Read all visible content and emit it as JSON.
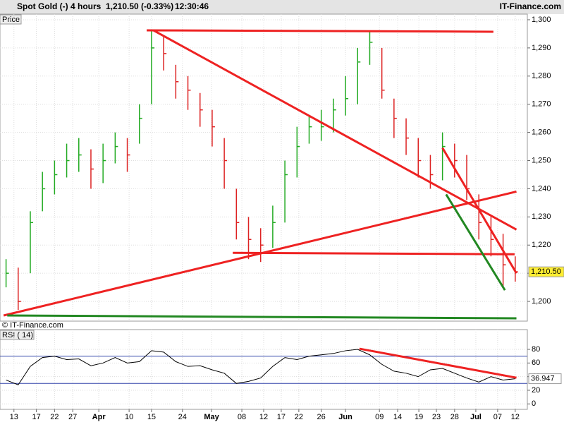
{
  "header": {
    "instrument": "Spot Gold (-)",
    "interval": "4 hours",
    "price": "1,210.50 (-0.33%)",
    "time": "12:30:46",
    "brand": "IT-Finance.com",
    "copyright": "© IT-Finance.com"
  },
  "chart_data": [
    {
      "type": "ohlc",
      "title": "Price",
      "x": [
        1,
        3,
        5,
        7,
        9,
        11,
        13,
        15,
        17,
        19,
        21,
        23,
        25,
        27,
        29,
        31,
        33,
        35,
        37,
        39,
        41,
        43,
        45,
        47,
        49,
        51,
        53,
        55,
        57,
        59,
        61,
        63,
        65,
        67,
        69,
        71,
        73,
        75,
        77,
        79,
        81,
        83,
        85
      ],
      "series": [
        {
          "name": "Spot Gold",
          "up_color": "#22aa22",
          "down_color": "#dd2222",
          "high": [
            1215,
            1212,
            1232,
            1246,
            1250,
            1256,
            1258,
            1254,
            1256,
            1260,
            1258,
            1270,
            1296,
            1294,
            1284,
            1280,
            1274,
            1268,
            1258,
            1240,
            1230,
            1226,
            1234,
            1250,
            1262,
            1266,
            1268,
            1272,
            1280,
            1290,
            1296,
            1290,
            1272,
            1265,
            1258,
            1252,
            1260,
            1256,
            1252,
            1238,
            1230,
            1224,
            1216
          ],
          "low": [
            1205,
            1197,
            1210,
            1232,
            1238,
            1244,
            1246,
            1240,
            1242,
            1249,
            1246,
            1256,
            1270,
            1282,
            1272,
            1268,
            1262,
            1255,
            1240,
            1222,
            1215,
            1214,
            1219,
            1228,
            1244,
            1256,
            1257,
            1260,
            1266,
            1270,
            1284,
            1272,
            1258,
            1252,
            1244,
            1240,
            1243,
            1244,
            1236,
            1222,
            1216,
            1205,
            1207
          ],
          "values": [
            1210,
            1200,
            1228,
            1240,
            1245,
            1250,
            1252,
            1247,
            1250,
            1255,
            1252,
            1265,
            1290,
            1288,
            1278,
            1275,
            1268,
            1262,
            1250,
            1228,
            1222,
            1220,
            1228,
            1245,
            1255,
            1262,
            1262,
            1268,
            1272,
            1285,
            1292,
            1275,
            1265,
            1258,
            1250,
            1245,
            1255,
            1250,
            1240,
            1228,
            1222,
            1213,
            1210.5
          ],
          "last_label": "1,210.50"
        }
      ],
      "trendlines": [
        {
          "color": "#ee2222",
          "x": [
            24.2,
            81.4
          ],
          "y": [
            1296.25,
            1295.75
          ]
        },
        {
          "color": "#ee2222",
          "x": [
            25.3,
            85.2
          ],
          "y": [
            1296.25,
            1225.5
          ]
        },
        {
          "color": "#ee2222",
          "x": [
            0.6,
            85.2
          ],
          "y": [
            1195,
            1239
          ]
        },
        {
          "color": "#ee2222",
          "x": [
            38.4,
            84.9
          ],
          "y": [
            1217.25,
            1216.75
          ]
        },
        {
          "color": "#ee2222",
          "x": [
            73,
            85.2
          ],
          "y": [
            1254.5,
            1210
          ]
        },
        {
          "color": "#228822",
          "x": [
            73.6,
            83.3
          ],
          "y": [
            1238,
            1204
          ]
        },
        {
          "color": "#228822",
          "x": [
            1.2,
            85.2
          ],
          "y": [
            1195,
            1194
          ]
        }
      ],
      "xlim": [
        0,
        87
      ],
      "ylim": [
        1193,
        1302
      ],
      "yticks": [
        {
          "value": 1200,
          "label": "1,200"
        },
        {
          "value": 1210,
          "label": "1,210"
        },
        {
          "value": 1220,
          "label": "1,220"
        },
        {
          "value": 1230,
          "label": "1,230"
        },
        {
          "value": 1240,
          "label": "1,240"
        },
        {
          "value": 1250,
          "label": "1,250"
        },
        {
          "value": 1260,
          "label": "1,260"
        },
        {
          "value": 1270,
          "label": "1,270"
        },
        {
          "value": 1280,
          "label": "1,280"
        },
        {
          "value": 1290,
          "label": "1,290"
        },
        {
          "value": 1300,
          "label": "1,300"
        }
      ],
      "grid": true
    },
    {
      "type": "line",
      "title": "RSI ( 14)",
      "x": [
        1,
        3,
        5,
        7,
        9,
        11,
        13,
        15,
        17,
        19,
        21,
        23,
        25,
        27,
        29,
        31,
        33,
        35,
        37,
        39,
        41,
        43,
        45,
        47,
        49,
        51,
        53,
        55,
        57,
        59,
        61,
        63,
        65,
        67,
        69,
        71,
        73,
        75,
        77,
        79,
        81,
        83,
        85
      ],
      "series": [
        {
          "name": "RSI",
          "color": "#000000",
          "values": [
            35,
            28,
            55,
            68,
            70,
            65,
            66,
            56,
            60,
            68,
            60,
            62,
            78,
            76,
            62,
            55,
            56,
            50,
            45,
            30,
            33,
            38,
            55,
            68,
            65,
            70,
            72,
            74,
            78,
            80,
            72,
            58,
            48,
            45,
            40,
            50,
            52,
            45,
            38,
            32,
            40,
            35,
            36.947
          ]
        }
      ],
      "levels": [
        70,
        30
      ],
      "level_color": "#3344aa",
      "trendlines": [
        {
          "color": "#ee2222",
          "x": [
            59.3,
            85.2
          ],
          "y": [
            81,
            38.4
          ]
        }
      ],
      "xlim": [
        0,
        87
      ],
      "ylim": [
        -8,
        109
      ],
      "yticks": [
        0,
        20,
        40,
        60,
        80
      ],
      "xticks": [
        {
          "value": 2.3,
          "label": "13"
        },
        {
          "value": 6,
          "label": "17"
        },
        {
          "value": 9,
          "label": "22"
        },
        {
          "value": 12,
          "label": "27"
        },
        {
          "value": 16.3,
          "label": "Apr"
        },
        {
          "value": 21.3,
          "label": "10"
        },
        {
          "value": 25,
          "label": "15"
        },
        {
          "value": 30.1,
          "label": "24"
        },
        {
          "value": 34.9,
          "label": "May"
        },
        {
          "value": 39.9,
          "label": "08"
        },
        {
          "value": 43.5,
          "label": "12"
        },
        {
          "value": 46.4,
          "label": "17"
        },
        {
          "value": 49.3,
          "label": "22"
        },
        {
          "value": 53,
          "label": "26"
        },
        {
          "value": 57,
          "label": "Jun"
        },
        {
          "value": 62.6,
          "label": "09"
        },
        {
          "value": 65.6,
          "label": "14"
        },
        {
          "value": 69.1,
          "label": "19"
        },
        {
          "value": 72,
          "label": "23"
        },
        {
          "value": 75,
          "label": "28"
        },
        {
          "value": 78.5,
          "label": "Jul"
        },
        {
          "value": 82.1,
          "label": "07"
        },
        {
          "value": 85,
          "label": "12"
        }
      ],
      "grid": true
    }
  ]
}
